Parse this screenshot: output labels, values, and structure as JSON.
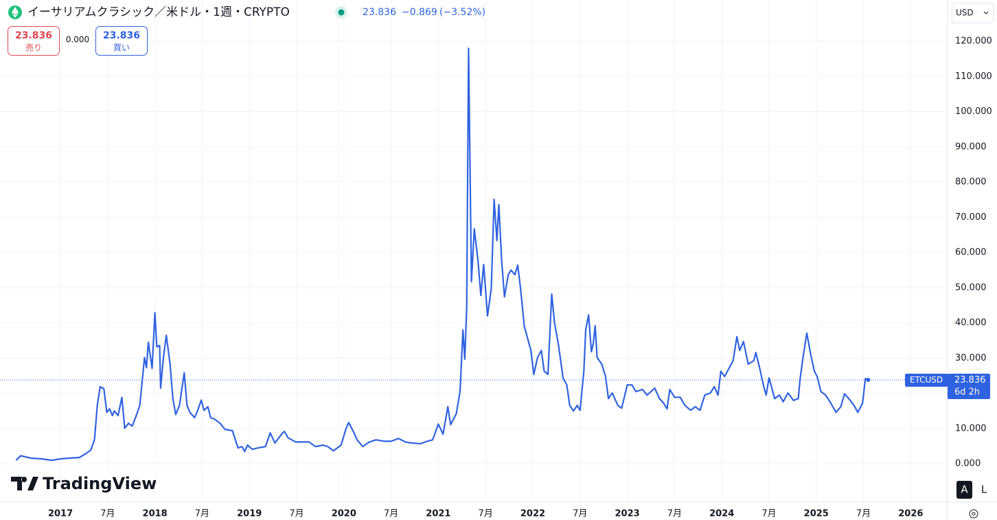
{
  "chart_data": {
    "type": "line",
    "title": "イーサリアムクラシック／米ドル・1週・CRYPTO",
    "change": "−0.869",
    "change_pct": "(−3.52%)",
    "symbol": "ETCUSD",
    "countdown": "6d 2h",
    "color": "#2f62e0",
    "grid": true,
    "xlim": [
      2016.36,
      2026.39
    ],
    "ylim": [
      -10.3,
      131.7
    ],
    "xticks": [
      2017,
      {
        "value": 2017.5,
        "label": "7月"
      },
      2018,
      {
        "value": 2018.5,
        "label": "7月"
      },
      2019,
      {
        "value": 2019.5,
        "label": "7月"
      },
      2020,
      {
        "value": 2020.5,
        "label": "7月"
      },
      2021,
      {
        "value": 2021.5,
        "label": "7月"
      },
      2022,
      {
        "value": 2022.5,
        "label": "7月"
      },
      2023,
      {
        "value": 2023.5,
        "label": "7月"
      },
      2024,
      {
        "value": 2024.5,
        "label": "7月"
      },
      2025,
      {
        "value": 2025.5,
        "label": "7月"
      },
      2026
    ],
    "yticks": [
      {
        "value": 0,
        "label": "0.000"
      },
      {
        "value": 10,
        "label": "10.000"
      },
      {
        "value": 20,
        "label": "20.000"
      },
      {
        "value": 30,
        "label": "30.000"
      },
      {
        "value": 40,
        "label": "40.000"
      },
      {
        "value": 50,
        "label": "50.000"
      },
      {
        "value": 60,
        "label": "60.000"
      },
      {
        "value": 70,
        "label": "70.000"
      },
      {
        "value": 80,
        "label": "80.000"
      },
      {
        "value": 90,
        "label": "90.000"
      },
      {
        "value": 100,
        "label": "100.000"
      },
      {
        "value": 110,
        "label": "110.000"
      },
      {
        "value": 120,
        "label": "120.000"
      }
    ],
    "x": [
      2016.53,
      2016.58,
      2016.69,
      2016.8,
      2016.91,
      2017.0,
      2017.09,
      2017.2,
      2017.27,
      2017.32,
      2017.36,
      2017.39,
      2017.42,
      2017.46,
      2017.49,
      2017.52,
      2017.55,
      2017.57,
      2017.61,
      2017.65,
      2017.68,
      2017.72,
      2017.76,
      2017.8,
      2017.84,
      2017.89,
      2017.91,
      2017.93,
      2017.97,
      2018.0,
      2018.02,
      2018.05,
      2018.06,
      2018.09,
      2018.12,
      2018.16,
      2018.19,
      2018.22,
      2018.26,
      2018.31,
      2018.34,
      2018.37,
      2018.42,
      2018.45,
      2018.49,
      2018.52,
      2018.56,
      2018.59,
      2018.63,
      2018.69,
      2018.74,
      2018.82,
      2018.88,
      2018.92,
      2018.95,
      2018.98,
      2019.03,
      2019.09,
      2019.17,
      2019.22,
      2019.27,
      2019.34,
      2019.37,
      2019.41,
      2019.49,
      2019.56,
      2019.63,
      2019.7,
      2019.78,
      2019.83,
      2019.89,
      2019.97,
      2020.02,
      2020.05,
      2020.1,
      2020.14,
      2020.2,
      2020.27,
      2020.34,
      2020.43,
      2020.5,
      2020.58,
      2020.65,
      2020.72,
      2020.81,
      2020.88,
      2020.94,
      2021.0,
      2021.05,
      2021.1,
      2021.13,
      2021.19,
      2021.23,
      2021.26,
      2021.28,
      2021.3,
      2021.32,
      2021.35,
      2021.38,
      2021.42,
      2021.45,
      2021.48,
      2021.52,
      2021.56,
      2021.59,
      2021.62,
      2021.64,
      2021.67,
      2021.7,
      2021.74,
      2021.77,
      2021.81,
      2021.84,
      2021.87,
      2021.91,
      2021.94,
      2021.98,
      2022.01,
      2022.05,
      2022.09,
      2022.12,
      2022.16,
      2022.2,
      2022.23,
      2022.27,
      2022.32,
      2022.36,
      2022.39,
      2022.43,
      2022.47,
      2022.5,
      2022.54,
      2022.56,
      2022.59,
      2022.62,
      2022.64,
      2022.66,
      2022.68,
      2022.73,
      2022.77,
      2022.8,
      2022.84,
      2022.9,
      2022.94,
      2023.0,
      2023.05,
      2023.09,
      2023.16,
      2023.21,
      2023.29,
      2023.34,
      2023.38,
      2023.42,
      2023.45,
      2023.5,
      2023.56,
      2023.61,
      2023.67,
      2023.72,
      2023.77,
      2023.82,
      2023.88,
      2023.92,
      2023.96,
      2023.99,
      2024.03,
      2024.08,
      2024.12,
      2024.16,
      2024.19,
      2024.23,
      2024.28,
      2024.34,
      2024.36,
      2024.4,
      2024.44,
      2024.47,
      2024.5,
      2024.56,
      2024.61,
      2024.65,
      2024.7,
      2024.76,
      2024.81,
      2024.83,
      2024.86,
      2024.9,
      2024.94,
      2024.98,
      2025.01,
      2025.05,
      2025.1,
      2025.15,
      2025.21,
      2025.26,
      2025.3,
      2025.36,
      2025.4,
      2025.44,
      2025.49,
      2025.52,
      2025.55
    ],
    "series": [
      {
        "name": "ETCUSD",
        "color": "#2f62e0",
        "values": [
          1.0,
          2.3,
          1.6,
          1.4,
          1.0,
          1.4,
          1.6,
          1.8,
          2.9,
          3.9,
          6.8,
          16.6,
          21.9,
          21.3,
          14.6,
          15.6,
          13.7,
          15.0,
          13.7,
          18.9,
          10.1,
          11.5,
          10.7,
          13.5,
          16.6,
          30.2,
          27.3,
          34.5,
          27.1,
          42.9,
          33.2,
          33.6,
          21.5,
          30.2,
          36.5,
          28.3,
          18.5,
          14.0,
          16.6,
          25.8,
          16.6,
          14.6,
          13.1,
          15.0,
          18.1,
          15.2,
          16.2,
          13.1,
          12.7,
          11.5,
          9.8,
          9.4,
          4.5,
          4.9,
          3.5,
          5.3,
          4.1,
          4.5,
          4.9,
          8.8,
          5.9,
          8.4,
          9.2,
          7.4,
          6.2,
          6.2,
          6.2,
          4.9,
          5.3,
          4.9,
          3.7,
          5.3,
          9.8,
          11.7,
          9.2,
          6.8,
          4.9,
          6.2,
          6.8,
          6.4,
          6.4,
          7.2,
          6.2,
          5.9,
          5.7,
          6.4,
          6.8,
          11.3,
          8.4,
          16.2,
          11.1,
          14.2,
          20.5,
          38.0,
          29.7,
          44.5,
          118.0,
          51.7,
          66.7,
          57.6,
          47.8,
          56.6,
          42.0,
          49.8,
          75.1,
          63.4,
          73.6,
          57.6,
          47.4,
          53.7,
          55.0,
          53.7,
          56.4,
          49.8,
          39.0,
          36.1,
          32.2,
          25.4,
          30.2,
          32.2,
          26.3,
          25.4,
          48.2,
          40.0,
          34.1,
          24.4,
          22.4,
          16.6,
          15.0,
          16.6,
          15.2,
          26.3,
          38.0,
          42.3,
          31.8,
          34.1,
          39.2,
          30.2,
          28.3,
          24.8,
          18.5,
          20.1,
          16.6,
          15.8,
          22.4,
          22.4,
          20.5,
          21.1,
          19.5,
          21.5,
          18.5,
          17.4,
          15.6,
          21.1,
          18.9,
          18.9,
          16.6,
          15.2,
          16.2,
          15.2,
          19.5,
          20.1,
          21.9,
          19.5,
          26.3,
          24.8,
          27.3,
          29.3,
          36.1,
          32.2,
          34.7,
          28.3,
          29.3,
          31.6,
          27.3,
          22.4,
          19.5,
          24.4,
          18.5,
          19.5,
          17.6,
          20.1,
          18.0,
          18.5,
          24.4,
          30.2,
          37.1,
          31.2,
          26.3,
          24.8,
          20.5,
          19.5,
          17.4,
          14.6,
          16.2,
          19.9,
          18.0,
          16.6,
          14.6,
          17.2,
          24.2,
          23.836
        ]
      }
    ]
  },
  "ui": {
    "sell": "売り",
    "buy": "買い",
    "spread": "0.000",
    "currency": "USD",
    "logo": "TradingView",
    "scale_auto": "A",
    "scale_log": "L"
  }
}
